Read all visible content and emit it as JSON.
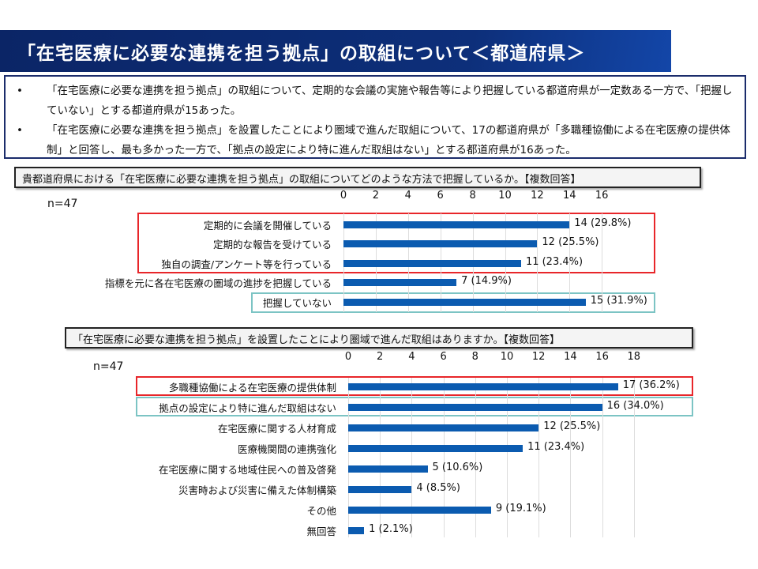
{
  "title": "「在宅医療に必要な連携を担う拠点」の取組について＜都道府県＞",
  "summary": [
    "「在宅医療に必要な連携を担う拠点」の取組について、定期的な会議の実施や報告等により把握している都道府県が一定数ある一方で、「把握していない」とする都道府県が15あった。",
    "「在宅医療に必要な連携を担う拠点」を設置したことにより圏域で進んだ取組について、17の都道府県が「多職種協働による在宅医療の提供体制」と回答し、最も多かった一方で、「拠点の設定により特に進んだ取組はない」とする都道府県が16あった。"
  ],
  "bullet": "•",
  "colors": {
    "bar": "#0b5bb0",
    "highlight_red": "#e8262a",
    "highlight_teal": "#7cc4c4",
    "title_bg": "#0d2f7a"
  },
  "chart_data": [
    {
      "type": "bar",
      "orientation": "horizontal",
      "title": "貴都道府県における「在宅医療に必要な連携を担う拠点」の取組についてどのような方法で把握しているか。【複数回答】",
      "n_label": "n=47",
      "xlim": [
        0,
        16
      ],
      "ticks": [
        "0",
        "2",
        "4",
        "6",
        "8",
        "10",
        "12",
        "14",
        "16"
      ],
      "categories": [
        "定期的に会議を開催している",
        "定期的な報告を受けている",
        "独自の調査/アンケート等を行っている",
        "指標を元に各在宅医療の圏域の進捗を把握している",
        "把握していない"
      ],
      "values": [
        14,
        12,
        11,
        7,
        15
      ],
      "labels": [
        "14 (29.8%)",
        "12 (25.5%)",
        "11 (23.4%)",
        "7 (14.9%)",
        "15 (31.9%)"
      ]
    },
    {
      "type": "bar",
      "orientation": "horizontal",
      "title": "「在宅医療に必要な連携を担う拠点」を設置したことにより圏域で進んだ取組はありますか。【複数回答】",
      "n_label": "n=47",
      "xlim": [
        0,
        18
      ],
      "ticks": [
        "0",
        "2",
        "4",
        "6",
        "8",
        "10",
        "12",
        "14",
        "16",
        "18"
      ],
      "categories": [
        "多職種協働による在宅医療の提供体制",
        "拠点の設定により特に進んだ取組はない",
        "在宅医療に関する人材育成",
        "医療機関間の連携強化",
        "在宅医療に関する地域住民への普及啓発",
        "災害時および災害に備えた体制構築",
        "その他",
        "無回答"
      ],
      "values": [
        17,
        16,
        12,
        11,
        5,
        4,
        9,
        1
      ],
      "labels": [
        "17 (36.2%)",
        "16 (34.0%)",
        "12 (25.5%)",
        "11 (23.4%)",
        "5 (10.6%)",
        "4 (8.5%)",
        "9 (19.1%)",
        "1 (2.1%)"
      ]
    }
  ]
}
